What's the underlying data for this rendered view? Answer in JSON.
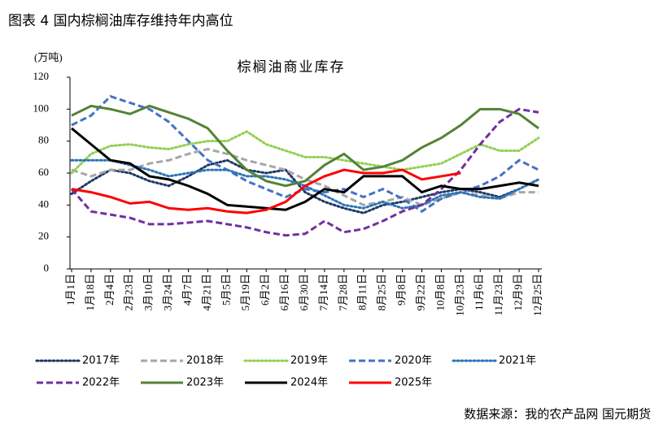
{
  "header": "图表 4 国内棕榈油库存维持年内高位",
  "source": "数据来源：我的农产品网 国元期货",
  "chart_data": {
    "type": "line",
    "title": "棕榈油商业库存",
    "y_unit": "(万吨)",
    "categories": [
      "1月1日",
      "1月18日",
      "2月4日",
      "2月23日",
      "3月10日",
      "3月24日",
      "4月7日",
      "4月21日",
      "5月5日",
      "5月19日",
      "6月2日",
      "6月16日",
      "6月30日",
      "7月14日",
      "7月28日",
      "8月11日",
      "8月25日",
      "9月8日",
      "9月22日",
      "10月8日",
      "10月23日",
      "11月6日",
      "11月23日",
      "12月9日",
      "12月25日"
    ],
    "ylim": [
      0,
      120
    ],
    "yticks": [
      0,
      20,
      40,
      60,
      80,
      100,
      120
    ],
    "series": [
      {
        "name": "2017年",
        "color": "#1f3864",
        "dash": "dotted",
        "values": [
          47,
          55,
          62,
          60,
          55,
          52,
          58,
          65,
          68,
          62,
          60,
          62,
          48,
          42,
          38,
          35,
          40,
          42,
          45,
          48,
          50,
          48,
          45,
          50,
          56
        ]
      },
      {
        "name": "2018年",
        "color": "#a6a6a6",
        "dash": "dashed",
        "values": [
          62,
          58,
          62,
          62,
          66,
          68,
          72,
          75,
          72,
          68,
          65,
          62,
          56,
          52,
          46,
          40,
          42,
          45,
          40,
          44,
          48,
          46,
          44,
          48,
          48
        ]
      },
      {
        "name": "2019年",
        "color": "#92d050",
        "dash": "dotted",
        "values": [
          60,
          72,
          77,
          78,
          76,
          75,
          78,
          80,
          80,
          86,
          78,
          74,
          70,
          70,
          68,
          66,
          64,
          62,
          64,
          66,
          72,
          78,
          74,
          74,
          82
        ]
      },
      {
        "name": "2020年",
        "color": "#4472c4",
        "dash": "dashed",
        "values": [
          90,
          96,
          108,
          104,
          100,
          92,
          80,
          68,
          62,
          55,
          50,
          45,
          50,
          48,
          50,
          45,
          50,
          44,
          36,
          44,
          48,
          52,
          58,
          68,
          62
        ]
      },
      {
        "name": "2021年",
        "color": "#2e75b6",
        "dash": "dotted",
        "values": [
          68,
          68,
          68,
          65,
          62,
          58,
          60,
          62,
          62,
          58,
          58,
          56,
          52,
          46,
          40,
          38,
          42,
          38,
          40,
          46,
          48,
          45,
          44,
          50,
          56
        ]
      },
      {
        "name": "2022年",
        "color": "#7030a0",
        "dash": "dashed",
        "values": [
          50,
          36,
          34,
          32,
          28,
          28,
          29,
          30,
          28,
          26,
          23,
          21,
          22,
          30,
          23,
          25,
          30,
          36,
          40,
          50,
          62,
          78,
          92,
          100,
          98
        ]
      },
      {
        "name": "2023年",
        "color": "#548235",
        "dash": "solid",
        "values": [
          96,
          102,
          100,
          97,
          102,
          98,
          94,
          88,
          74,
          62,
          55,
          52,
          55,
          65,
          72,
          62,
          64,
          68,
          76,
          82,
          90,
          100,
          100,
          97,
          88
        ]
      },
      {
        "name": "2024年",
        "color": "#000000",
        "dash": "solid",
        "values": [
          88,
          78,
          68,
          66,
          58,
          56,
          52,
          47,
          40,
          39,
          38,
          37,
          42,
          50,
          48,
          58,
          58,
          58,
          48,
          52,
          50,
          50,
          52,
          54,
          52
        ]
      },
      {
        "name": "2025年",
        "color": "#ff0000",
        "dash": "solid",
        "values": [
          50,
          48,
          45,
          41,
          42,
          38,
          37,
          38,
          36,
          35,
          37,
          42,
          52,
          58,
          62,
          60,
          60,
          62,
          56,
          58,
          60,
          null,
          null,
          null,
          null
        ]
      }
    ]
  }
}
